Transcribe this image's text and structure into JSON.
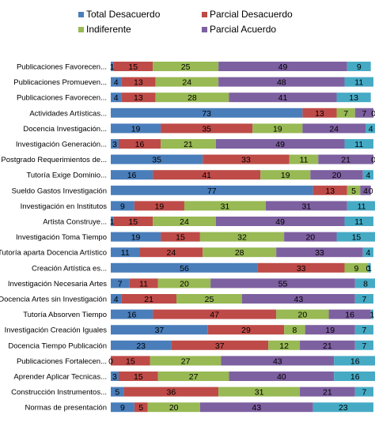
{
  "chart_data": {
    "type": "bar",
    "orientation": "horizontal",
    "stacked": true,
    "legend_position": "top",
    "grid": false,
    "categories": [
      "Publicaciones Favorecen...",
      "Publicaciones Promueven...",
      "Publicaciones Favorecen...",
      "Actividades Artísticas...",
      "Docencia Investigación...",
      "Investigación Generación...",
      "Postgrado Requerimientos de...",
      "Tutoría Exige Dominio...",
      "Sueldo Gastos Investigación",
      "Investigación en Institutos",
      "Artista Construye...",
      "Investigación Toma Tiempo",
      "Tutoría aparta Docencia Artístico",
      "Creación Artística es...",
      "Investigación Necesaria Artes",
      "Docencia Artes sin Investigación",
      "Tutoría Absorven Tiempo",
      "Investigación Creación Iguales",
      "Docencia Tiempo Publicación",
      "Publicaciones Fortalecen...",
      "Aprender Aplicar Tecnicas...",
      "Construcción Instrumentos...",
      "Normas de presentación"
    ],
    "series": [
      {
        "name": "Total Desacuerdo",
        "color": "#4a7ebb",
        "values": [
          1,
          4,
          4,
          73,
          19,
          3,
          35,
          16,
          77,
          9,
          1,
          19,
          11,
          56,
          7,
          4,
          16,
          37,
          23,
          0,
          3,
          5,
          9
        ]
      },
      {
        "name": "Parcial Desacuerdo",
        "color": "#be4b48",
        "values": [
          15,
          13,
          13,
          13,
          35,
          16,
          33,
          41,
          13,
          19,
          15,
          15,
          24,
          33,
          11,
          21,
          47,
          29,
          37,
          15,
          15,
          36,
          5
        ]
      },
      {
        "name": "Indiferente",
        "color": "#98b954",
        "values": [
          25,
          24,
          28,
          7,
          19,
          21,
          11,
          19,
          5,
          31,
          24,
          32,
          28,
          9,
          20,
          25,
          20,
          8,
          12,
          27,
          27,
          31,
          20
        ]
      },
      {
        "name": "Parcial Acuerdo",
        "color": "#7d60a0",
        "values": [
          49,
          48,
          41,
          7,
          24,
          49,
          21,
          20,
          4,
          31,
          49,
          20,
          33,
          0,
          55,
          43,
          16,
          19,
          21,
          43,
          40,
          21,
          43
        ]
      },
      {
        "name": "",
        "color": "#46aac5",
        "values": [
          9,
          11,
          13,
          0,
          4,
          11,
          0,
          4,
          0,
          11,
          11,
          15,
          4,
          1,
          8,
          7,
          1,
          7,
          7,
          16,
          16,
          7,
          23
        ]
      }
    ],
    "xlim": [
      0,
      100
    ]
  }
}
